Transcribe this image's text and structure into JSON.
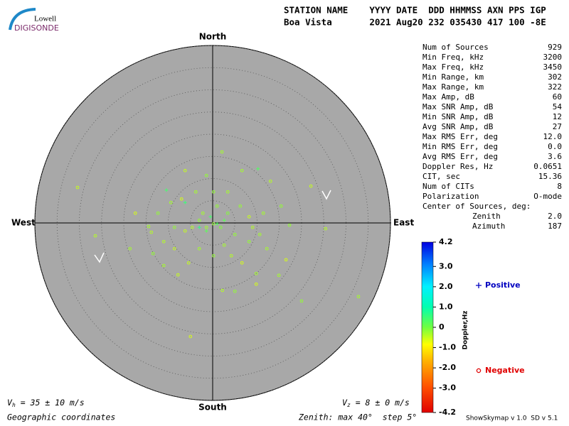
{
  "header": {
    "logo_top": "Lowell",
    "logo_bottom": "DIGISONDE",
    "labels": "STATION NAME    YYYY DATE  DDD HHMMSS AXN PPS IGP",
    "values": "Boa Vista       2021 Aug20 232 035430 417 100 -8E"
  },
  "stats": {
    "rows": [
      [
        "Num of Sources",
        "929"
      ],
      [
        "Min Freq, kHz",
        "3200"
      ],
      [
        "Max Freq, kHz",
        "3450"
      ],
      [
        "Min Range, km",
        "302"
      ],
      [
        "Max Range, km",
        "322"
      ],
      [
        "Max Amp, dB",
        "60"
      ],
      [
        "Max SNR Amp, dB",
        "54"
      ],
      [
        "Min SNR Amp, dB",
        "12"
      ],
      [
        "Avg SNR Amp, dB",
        "27"
      ],
      [
        "Max RMS Err, deg",
        "12.0"
      ],
      [
        "Min RMS Err, deg",
        "0.0"
      ],
      [
        "Avg RMS Err, deg",
        "3.6"
      ],
      [
        "Doppler Res, Hz",
        "0.0651"
      ],
      [
        "CIT, sec",
        "15.36"
      ],
      [
        "Num of CITs",
        "8"
      ],
      [
        "Polarization",
        "O-mode"
      ],
      [
        "Center of Sources, deg:",
        ""
      ]
    ],
    "center": [
      [
        "Zenith",
        "2.0"
      ],
      [
        "Azimuth",
        "187"
      ]
    ]
  },
  "footer": {
    "vh": {
      "symbol": "V",
      "sub": "h",
      "text": " = 35 ± 10 m/s"
    },
    "vz": {
      "symbol": "V",
      "sub": "z",
      "text": " = 8 ± 0 m/s"
    },
    "coordinates": "Geographic coordinates",
    "zenith": "Zenith: max 40°  step 5°",
    "version": "ShowSkymap v 1.0  SD v 5.1"
  },
  "chart_data": {
    "type": "polar-scatter",
    "directions": {
      "north": "North",
      "south": "South",
      "west": "West",
      "east": "East"
    },
    "rmax": 40,
    "rticks": [
      5,
      10,
      15,
      20,
      25,
      30,
      35,
      40
    ],
    "colorbar": {
      "label": "Doppler,Hz",
      "clim": [
        -4.2,
        4.2
      ],
      "ticks": [
        4.2,
        {
          "value": 3,
          "label": "3.0"
        },
        {
          "value": 2,
          "label": "2.0"
        },
        {
          "value": 1,
          "label": "1.0"
        },
        0,
        {
          "value": -1,
          "label": "-1.0"
        },
        {
          "value": -2,
          "label": "-2.0"
        },
        {
          "value": -3,
          "label": "-3.0"
        },
        -4.2
      ]
    },
    "series": [
      {
        "name": "Positive",
        "color": "#0000c0",
        "marker": "plus",
        "x": [
          -10.4,
          10.2,
          -6.2,
          -1.4,
          1.0,
          -3.0,
          2.6,
          -0.5
        ],
        "values": [
          7.4,
          12.2,
          4.6,
          -1.8,
          -0.2,
          -1.0,
          0.6,
          1.4
        ],
        "doppler": [
          0.4,
          0.3,
          0.5,
          0.2,
          0.3,
          0.6,
          0.2,
          0.4
        ]
      },
      {
        "name": "Negative",
        "color": "#e00000",
        "marker": "circle",
        "x": [
          2.1,
          -30.4,
          -26.4,
          -18.6,
          -5.0,
          20.0,
          32.8,
          25.4,
          22.1,
          17.3,
          14.9,
          16.5,
          9.8,
          5.0,
          2.2,
          -7.8,
          -11.0,
          -13.4,
          -13.8,
          -14.4,
          -17.4,
          -12.3,
          -9.4,
          -6.2,
          -1.4,
          6.6,
          13.0,
          15.4,
          11.4,
          8.2,
          5.0,
          1.8,
          0.2,
          -1.4,
          -3.0,
          -4.6,
          3.4,
          1.0,
          -2.2,
          -6.2,
          -8.6,
          2.6,
          4.2,
          6.6,
          0.2,
          -3.0,
          -5.4,
          8.2,
          10.6,
          9.0,
          6.2,
          -3.8,
          -7.0,
          0.2,
          3.4,
          -11.0,
          -8.6,
          12.2,
          9.8
        ],
        "values": [
          16.0,
          8.0,
          -2.9,
          -5.8,
          -25.6,
          -17.6,
          -16.6,
          -1.3,
          8.3,
          -0.5,
          -11.8,
          -8.3,
          -11.4,
          -15.4,
          -15.2,
          -11.7,
          -9.6,
          -6.9,
          -2.1,
          -0.8,
          2.2,
          2.2,
          4.6,
          11.8,
          10.7,
          11.8,
          9.4,
          3.8,
          2.2,
          1.4,
          -2.6,
          -1.0,
          -0.2,
          -1.0,
          0.6,
          -1.0,
          2.2,
          3.8,
          2.2,
          -1.8,
          -1.0,
          -5.0,
          -7.4,
          -9.0,
          -7.4,
          -5.8,
          -9.0,
          -4.2,
          -2.6,
          -1.0,
          3.8,
          7.0,
          5.4,
          7.0,
          7.0,
          -4.2,
          -5.8,
          -5.8,
          -13.8
        ],
        "doppler": [
          -0.3,
          -0.5,
          -0.4,
          -0.3,
          -0.6,
          -0.2,
          -0.3,
          -0.4,
          -0.5,
          -0.2,
          -0.3,
          -0.6,
          -0.3,
          -0.2,
          -0.4,
          -0.5,
          -0.3,
          -0.2,
          -0.4,
          -0.3,
          -0.6,
          -0.2,
          -0.3,
          -0.5,
          -0.2,
          -0.3,
          -0.4,
          -0.2,
          -0.3,
          -0.5,
          -0.2,
          -0.1,
          -0.2,
          -0.3,
          -0.2,
          -0.4,
          -0.1,
          -0.2,
          -0.3,
          -0.5,
          -0.2,
          -0.3,
          -0.4,
          -0.6,
          -0.2,
          -0.3,
          -0.5,
          -0.2,
          -0.3,
          -0.4,
          -0.2,
          -0.3,
          -0.6,
          -0.2,
          -0.3,
          -0.4,
          -0.5,
          -0.3,
          -0.6
        ]
      }
    ]
  }
}
